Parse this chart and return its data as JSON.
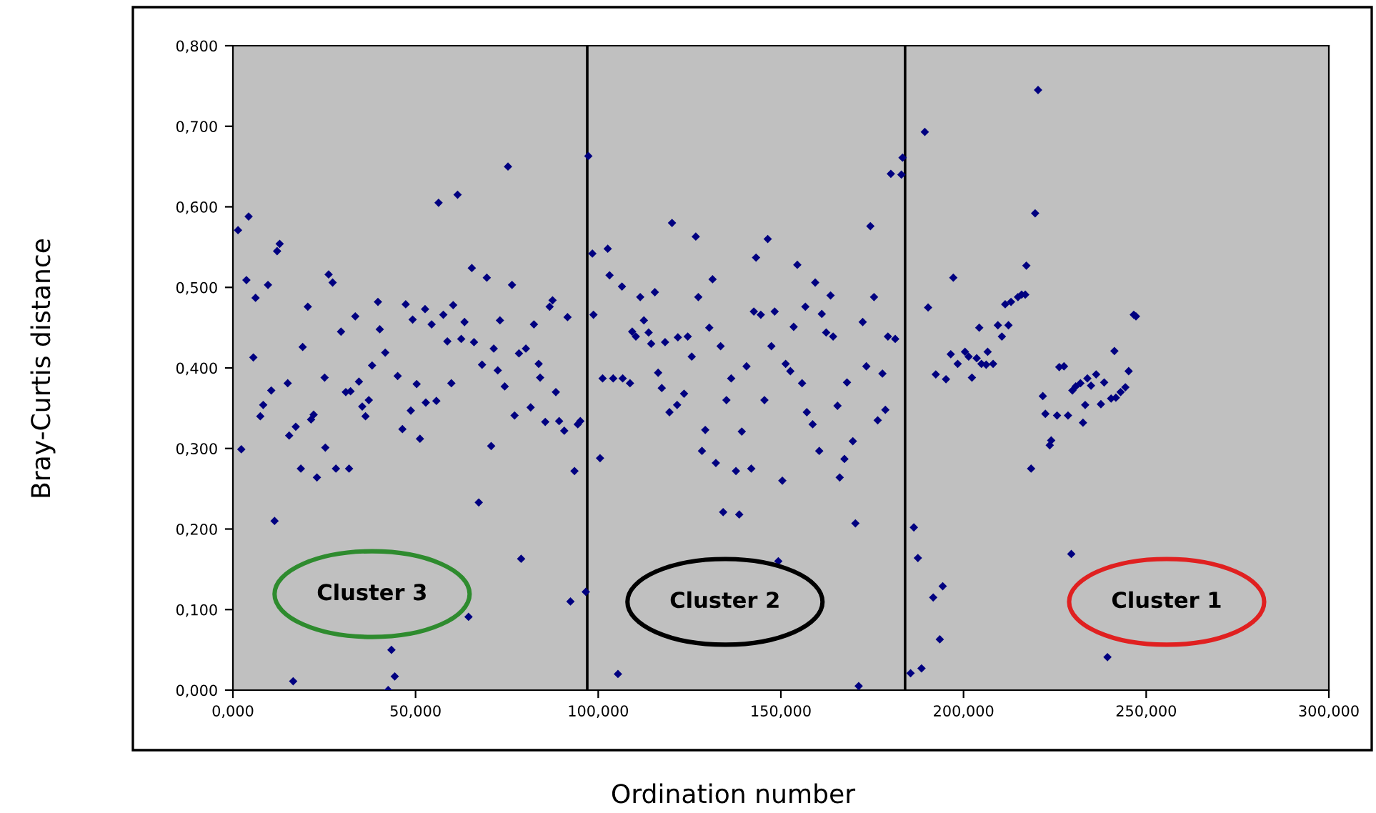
{
  "chart_data": {
    "type": "scatter",
    "xlabel": "Ordination number",
    "ylabel": "Bray-Curtis distance",
    "xlim": [
      0,
      300
    ],
    "ylim": [
      0,
      0.8
    ],
    "xticks": [
      {
        "value": 0,
        "label": "0,000"
      },
      {
        "value": 50,
        "label": "50,000"
      },
      {
        "value": 100,
        "label": "100,000"
      },
      {
        "value": 150,
        "label": "150,000"
      },
      {
        "value": 200,
        "label": "200,000"
      },
      {
        "value": 250,
        "label": "250,000"
      },
      {
        "value": 300,
        "label": "300,000"
      }
    ],
    "yticks": [
      {
        "value": 0,
        "label": "0,000"
      },
      {
        "value": 0.1,
        "label": "0,100"
      },
      {
        "value": 0.2,
        "label": "0,200"
      },
      {
        "value": 0.3,
        "label": "0,300"
      },
      {
        "value": 0.4,
        "label": "0,400"
      },
      {
        "value": 0.5,
        "label": "0,500"
      },
      {
        "value": 0.6,
        "label": "0,600"
      },
      {
        "value": 0.7,
        "label": "0,700"
      },
      {
        "value": 0.8,
        "label": "0,800"
      }
    ],
    "grid": false,
    "legend": false,
    "marker": "diamond",
    "ref_lines": [
      {
        "axis": "x",
        "value": 97,
        "color": "#000000"
      },
      {
        "axis": "x",
        "value": 184,
        "color": "#000000"
      }
    ],
    "annotations": [
      "Cluster 3",
      "Cluster 2",
      "Cluster 1"
    ],
    "series": [
      {
        "color": "#000080",
        "x": [
          1.4,
          4.3,
          3.7,
          6.2,
          9.6,
          5.6,
          2.3,
          11.4,
          12.8,
          12.1,
          26.2,
          27.3,
          20.5,
          19.1,
          10.5,
          8.3,
          7.5,
          15.0,
          17.2,
          15.4,
          22.1,
          21.4,
          25.1,
          25.3,
          18.6,
          23.0,
          28.2,
          31.8,
          29.6,
          33.5,
          30.9,
          32.2,
          34.5,
          38.1,
          37.2,
          35.4,
          36.3,
          39.7,
          40.2,
          41.7,
          45.1,
          47.3,
          49.2,
          50.3,
          48.7,
          46.4,
          51.2,
          52.6,
          54.4,
          52.8,
          55.7,
          56.3,
          61.5,
          57.6,
          60.3,
          58.7,
          59.8,
          62.5,
          63.4,
          65.4,
          66.0,
          68.2,
          69.5,
          71.4,
          72.5,
          73.1,
          74.4,
          70.7,
          67.3,
          75.3,
          76.4,
          77.1,
          78.3,
          80.2,
          81.5,
          82.4,
          83.7,
          84.1,
          86.7,
          87.5,
          88.4,
          91.6,
          85.5,
          89.3,
          90.7,
          94.4,
          95.1,
          93.5,
          97.3,
          98.4,
          98.7,
          78.9,
          64.5,
          92.4,
          96.6,
          43.4,
          44.3,
          42.5,
          16.5,
          102.6,
          103.1,
          106.5,
          100.5,
          111.5,
          115.5,
          112.5,
          109.3,
          110.3,
          113.8,
          114.5,
          118.3,
          121.8,
          124.5,
          125.6,
          120.2,
          126.7,
          127.4,
          131.3,
          130.4,
          133.5,
          101.2,
          104.1,
          106.7,
          108.7,
          116.4,
          117.4,
          123.5,
          121.6,
          119.5,
          129.3,
          128.4,
          132.2,
          135.1,
          136.4,
          140.6,
          139.3,
          137.7,
          141.9,
          134.2,
          138.6,
          143.2,
          146.4,
          142.6,
          144.5,
          148.3,
          147.4,
          153.5,
          154.5,
          156.7,
          159.4,
          163.6,
          161.2,
          162.4,
          164.3,
          151.3,
          152.6,
          155.8,
          145.5,
          157.1,
          158.7,
          160.5,
          165.5,
          168.1,
          173.4,
          177.8,
          178.6,
          176.5,
          169.7,
          167.4,
          166.1,
          150.4,
          170.4,
          174.5,
          175.5,
          172.4,
          179.3,
          181.3,
          180.1,
          183.0,
          183.3,
          149.3,
          105.4,
          171.3,
          189.4,
          190.3,
          197.2,
          186.4,
          187.5,
          191.7,
          194.3,
          193.5,
          185.5,
          188.5,
          192.4,
          195.2,
          196.5,
          198.4,
          200.4,
          201.4,
          202.3,
          203.6,
          204.9,
          206.6,
          206.2,
          208.1,
          204.3,
          209.4,
          212.3,
          210.5,
          211.4,
          213.0,
          214.9,
          215.9,
          216.9,
          217.2,
          219.6,
          220.4,
          218.5,
          221.7,
          222.4,
          225.6,
          228.6,
          223.6,
          224.0,
          226.2,
          227.5,
          229.8,
          230.7,
          232.0,
          233.9,
          234.9,
          236.3,
          238.5,
          232.7,
          233.3,
          237.6,
          240.4,
          241.7,
          243.0,
          244.3,
          245.2,
          241.3,
          246.6,
          247.2,
          229.5,
          239.4
        ],
        "values": [
          0.571,
          0.588,
          0.509,
          0.487,
          0.503,
          0.413,
          0.299,
          0.21,
          0.554,
          0.545,
          0.516,
          0.506,
          0.476,
          0.426,
          0.372,
          0.354,
          0.34,
          0.381,
          0.327,
          0.316,
          0.342,
          0.336,
          0.388,
          0.301,
          0.275,
          0.264,
          0.275,
          0.275,
          0.445,
          0.464,
          0.37,
          0.371,
          0.383,
          0.403,
          0.36,
          0.352,
          0.34,
          0.482,
          0.448,
          0.419,
          0.39,
          0.479,
          0.46,
          0.38,
          0.347,
          0.324,
          0.312,
          0.473,
          0.454,
          0.357,
          0.359,
          0.605,
          0.615,
          0.466,
          0.478,
          0.433,
          0.381,
          0.436,
          0.457,
          0.524,
          0.432,
          0.404,
          0.512,
          0.424,
          0.397,
          0.459,
          0.377,
          0.303,
          0.233,
          0.65,
          0.503,
          0.341,
          0.418,
          0.424,
          0.351,
          0.454,
          0.405,
          0.388,
          0.476,
          0.484,
          0.37,
          0.463,
          0.333,
          0.334,
          0.322,
          0.33,
          0.334,
          0.272,
          0.663,
          0.542,
          0.466,
          0.163,
          0.091,
          0.11,
          0.122,
          0.05,
          0.017,
          0.0,
          0.011,
          0.548,
          0.515,
          0.501,
          0.288,
          0.488,
          0.494,
          0.459,
          0.445,
          0.439,
          0.444,
          0.43,
          0.432,
          0.438,
          0.439,
          0.414,
          0.58,
          0.563,
          0.488,
          0.51,
          0.45,
          0.427,
          0.387,
          0.387,
          0.387,
          0.381,
          0.394,
          0.375,
          0.368,
          0.354,
          0.345,
          0.323,
          0.297,
          0.282,
          0.36,
          0.387,
          0.402,
          0.321,
          0.272,
          0.275,
          0.221,
          0.218,
          0.537,
          0.56,
          0.47,
          0.466,
          0.47,
          0.427,
          0.451,
          0.528,
          0.476,
          0.506,
          0.49,
          0.467,
          0.444,
          0.439,
          0.405,
          0.396,
          0.381,
          0.36,
          0.345,
          0.33,
          0.297,
          0.353,
          0.382,
          0.402,
          0.393,
          0.348,
          0.335,
          0.309,
          0.287,
          0.264,
          0.26,
          0.207,
          0.576,
          0.488,
          0.457,
          0.439,
          0.436,
          0.641,
          0.64,
          0.661,
          0.16,
          0.02,
          0.005,
          0.693,
          0.475,
          0.512,
          0.202,
          0.164,
          0.115,
          0.129,
          0.063,
          0.021,
          0.027,
          0.392,
          0.386,
          0.417,
          0.405,
          0.42,
          0.414,
          0.388,
          0.412,
          0.405,
          0.42,
          0.404,
          0.405,
          0.45,
          0.453,
          0.453,
          0.439,
          0.479,
          0.482,
          0.488,
          0.491,
          0.491,
          0.527,
          0.592,
          0.745,
          0.275,
          0.365,
          0.343,
          0.341,
          0.341,
          0.304,
          0.31,
          0.401,
          0.402,
          0.372,
          0.377,
          0.381,
          0.387,
          0.378,
          0.392,
          0.382,
          0.332,
          0.354,
          0.355,
          0.362,
          0.363,
          0.37,
          0.376,
          0.396,
          0.421,
          0.466,
          0.464,
          0.169,
          0.041
        ]
      }
    ]
  }
}
